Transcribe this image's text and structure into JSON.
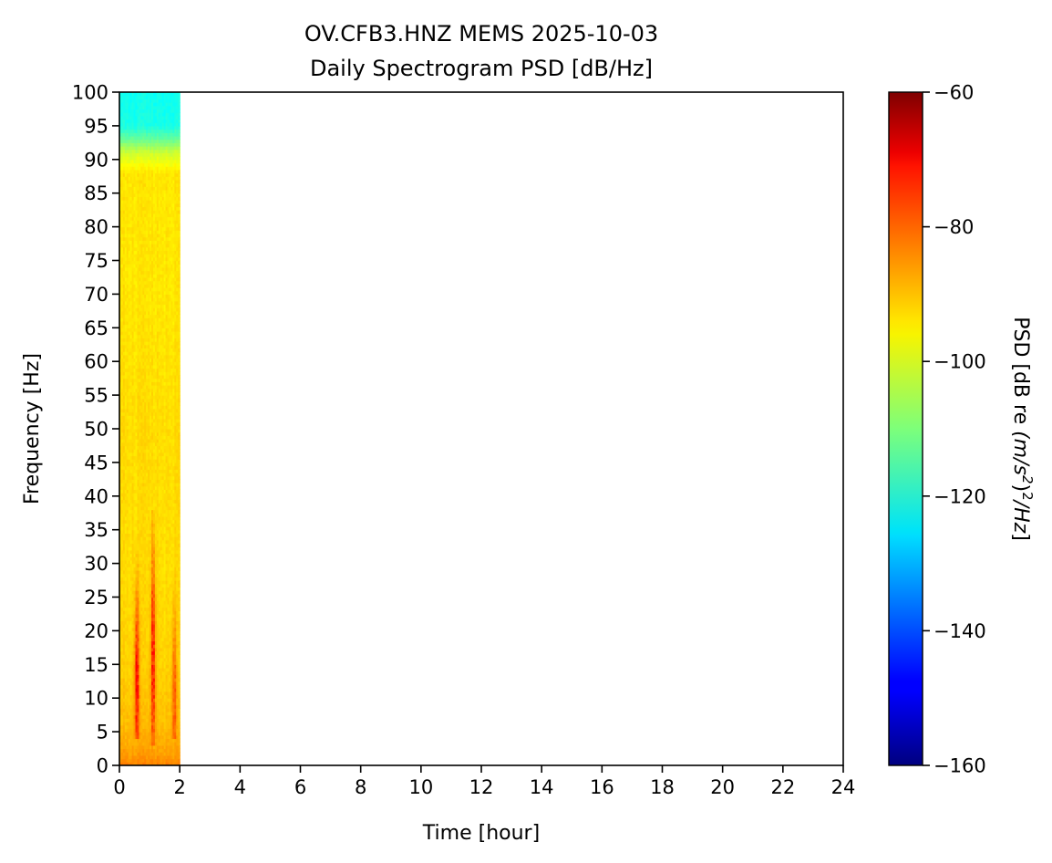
{
  "chart_data": {
    "type": "heatmap",
    "title_line1": "OV.CFB3.HNZ MEMS 2025-10-03",
    "title_line2": "Daily Spectrogram PSD [dB/Hz]",
    "xlabel": "Time [hour]",
    "ylabel": "Frequency [Hz]",
    "xlim": [
      0,
      24
    ],
    "ylim": [
      0,
      100
    ],
    "xticks": [
      "0",
      "2",
      "4",
      "6",
      "8",
      "10",
      "12",
      "14",
      "16",
      "18",
      "20",
      "22",
      "24"
    ],
    "yticks": [
      "0",
      "5",
      "10",
      "15",
      "20",
      "25",
      "30",
      "35",
      "40",
      "45",
      "50",
      "55",
      "60",
      "65",
      "70",
      "75",
      "80",
      "85",
      "90",
      "95",
      "100"
    ],
    "grid": false,
    "data_time_range": [
      0,
      2
    ],
    "psd_profile": [
      {
        "freq": 0,
        "psd": -85
      },
      {
        "freq": 1,
        "psd": -87
      },
      {
        "freq": 3,
        "psd": -89
      },
      {
        "freq": 6,
        "psd": -91
      },
      {
        "freq": 15,
        "psd": -93
      },
      {
        "freq": 30,
        "psd": -94
      },
      {
        "freq": 50,
        "psd": -94
      },
      {
        "freq": 70,
        "psd": -95
      },
      {
        "freq": 88,
        "psd": -95
      },
      {
        "freq": 91,
        "psd": -102
      },
      {
        "freq": 93,
        "psd": -112
      },
      {
        "freq": 95,
        "psd": -120
      },
      {
        "freq": 100,
        "psd": -121
      }
    ],
    "bursts": [
      {
        "time": 0.58,
        "freq_range": [
          4,
          32
        ],
        "peak_freq": 12,
        "peak_psd": -72
      },
      {
        "time": 1.12,
        "freq_range": [
          3,
          38
        ],
        "peak_freq": 16,
        "peak_psd": -74
      },
      {
        "time": 1.82,
        "freq_range": [
          4,
          30
        ],
        "peak_freq": 10,
        "peak_psd": -80
      }
    ],
    "colorbar": {
      "colormap": "jet",
      "label": "PSD [dB re (m/s²)²/Hz]",
      "label_plain": "PSD [dB re ",
      "label_italic": "(m/s",
      "label_sup": "2",
      "label_mid": ")",
      "label_sup2": "2",
      "label_tail": "/Hz",
      "label_close": "]",
      "range": [
        -160,
        -60
      ],
      "ticks": [
        "−60",
        "−80",
        "−100",
        "−120",
        "−140",
        "−160"
      ],
      "tick_values": [
        -60,
        -80,
        -100,
        -120,
        -140,
        -160
      ]
    }
  }
}
